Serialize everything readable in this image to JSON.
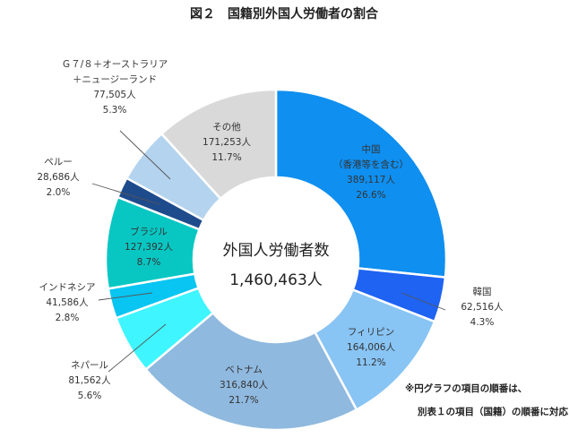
{
  "chart_data": {
    "type": "pie",
    "title": "図２　国籍別外国人労働者の割合",
    "center_title": "外国人労働者数",
    "center_value": "1,460,463人",
    "note_lines": [
      "※円グラフの項目の順番は、",
      "別表１の項目（国籍）の順番に対応"
    ],
    "slices": [
      {
        "label_lines": [
          "中国",
          "（香港等を含む）"
        ],
        "value": 389117,
        "value_text": "389,117人",
        "percent_text": "26.6%",
        "color": "#0f8ff0"
      },
      {
        "label_lines": [
          "韓国"
        ],
        "value": 62516,
        "value_text": "62,516人",
        "percent_text": "4.3%",
        "color": "#1f63f2"
      },
      {
        "label_lines": [
          "フィリピン"
        ],
        "value": 164006,
        "value_text": "164,006人",
        "percent_text": "11.2%",
        "color": "#88c4f4"
      },
      {
        "label_lines": [
          "ベトナム"
        ],
        "value": 316840,
        "value_text": "316,840人",
        "percent_text": "21.7%",
        "color": "#8fb9df"
      },
      {
        "label_lines": [
          "ネパール"
        ],
        "value": 81562,
        "value_text": "81,562人",
        "percent_text": "5.6%",
        "color": "#3ff5ff"
      },
      {
        "label_lines": [
          "インドネシア"
        ],
        "value": 41586,
        "value_text": "41,586人",
        "percent_text": "2.8%",
        "color": "#08c5f2"
      },
      {
        "label_lines": [
          "ブラジル"
        ],
        "value": 127392,
        "value_text": "127,392人",
        "percent_text": "8.7%",
        "color": "#08c7c3"
      },
      {
        "label_lines": [
          "ペルー"
        ],
        "value": 28686,
        "value_text": "28,686人",
        "percent_text": "2.0%",
        "color": "#1e4b8c"
      },
      {
        "label_lines": [
          "Ｇ７/８＋オーストラリア",
          "＋ニュージーランド"
        ],
        "value": 77505,
        "value_text": "77,505人",
        "percent_text": "5.3%",
        "color": "#b4d3ee"
      },
      {
        "label_lines": [
          "その他"
        ],
        "value": 171253,
        "value_text": "171,253人",
        "percent_text": "11.7%",
        "color": "#d9d9d9"
      }
    ]
  }
}
